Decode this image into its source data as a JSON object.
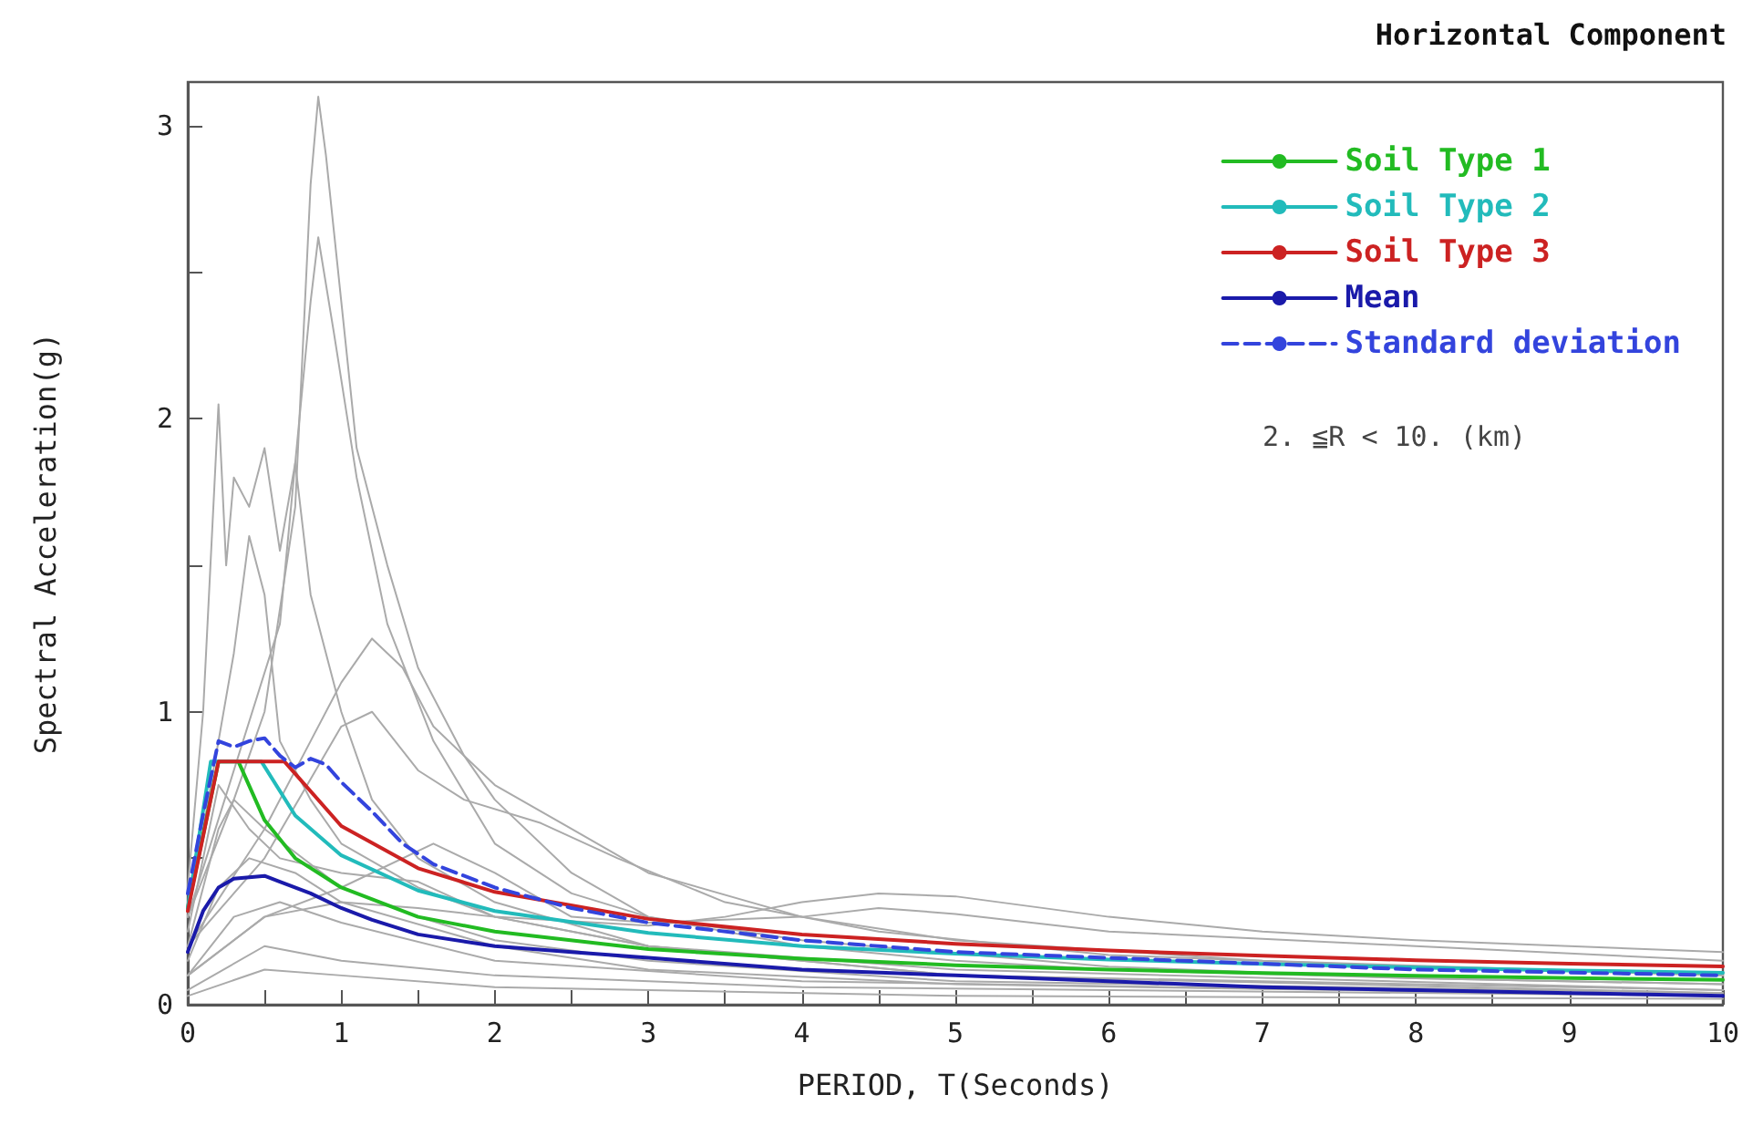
{
  "chart_data": {
    "type": "line",
    "title": "Horizontal Component",
    "xlabel": "PERIOD, T(Seconds)",
    "ylabel": "Spectral Acceleration(g)",
    "annotations": [
      "2. ≦R < 10. (km)"
    ],
    "xlim": [
      0,
      10
    ],
    "ylim": [
      0,
      3.15
    ],
    "xticks": [
      0,
      {
        "value": 0.5,
        "label": null
      },
      1,
      {
        "value": 1.5,
        "label": null
      },
      2,
      {
        "value": 2.5,
        "label": null
      },
      3,
      {
        "value": 3.5,
        "label": null
      },
      4,
      {
        "value": 4.5,
        "label": null
      },
      5,
      {
        "value": 5.5,
        "label": null
      },
      6,
      {
        "value": 6.5,
        "label": null
      },
      7,
      {
        "value": 7.5,
        "label": null
      },
      8,
      {
        "value": 8.5,
        "label": null
      },
      9,
      {
        "value": 9.5,
        "label": null
      },
      10
    ],
    "yticks": [
      0,
      {
        "value": 0.5,
        "label": null
      },
      1,
      {
        "value": 1.5,
        "label": null
      },
      2,
      {
        "value": 2.5,
        "label": null
      },
      3
    ],
    "grid": false,
    "legend": "top right",
    "marker": "none",
    "line_style": "solid",
    "series": [
      {
        "color": "#aaaaaa",
        "x": [
          0,
          0.3,
          0.5,
          0.7,
          0.8,
          0.85,
          0.9,
          1.0,
          1.1,
          1.3,
          1.5,
          1.8,
          2,
          2.5,
          3,
          4,
          5,
          6,
          8,
          10
        ],
        "values": [
          0.3,
          0.7,
          1.0,
          1.7,
          2.8,
          3.1,
          2.9,
          2.4,
          1.9,
          1.5,
          1.15,
          0.85,
          0.7,
          0.45,
          0.3,
          0.2,
          0.15,
          0.12,
          0.09,
          0.07
        ]
      },
      {
        "color": "#aaaaaa",
        "x": [
          0,
          0.3,
          0.6,
          0.8,
          0.85,
          0.95,
          1.1,
          1.3,
          1.6,
          2,
          2.5,
          3,
          4,
          6,
          8,
          10
        ],
        "values": [
          0.3,
          0.8,
          1.3,
          2.4,
          2.62,
          2.3,
          1.8,
          1.3,
          0.9,
          0.55,
          0.38,
          0.3,
          0.22,
          0.13,
          0.09,
          0.07
        ]
      },
      {
        "color": "#aaaaaa",
        "x": [
          0,
          0.1,
          0.2,
          0.25,
          0.3,
          0.4,
          0.5,
          0.6,
          0.7,
          0.8,
          1.0,
          1.2,
          1.5,
          2,
          3,
          5,
          10
        ],
        "values": [
          0.4,
          1.0,
          2.05,
          1.5,
          1.8,
          1.7,
          1.9,
          1.55,
          1.85,
          1.4,
          1.0,
          0.7,
          0.5,
          0.35,
          0.2,
          0.1,
          0.04
        ]
      },
      {
        "color": "#aaaaaa",
        "x": [
          0,
          0.2,
          0.3,
          0.4,
          0.5,
          0.6,
          0.8,
          1,
          1.5,
          2,
          3,
          5,
          10
        ],
        "values": [
          0.3,
          0.9,
          1.2,
          1.6,
          1.4,
          0.9,
          0.7,
          0.55,
          0.4,
          0.3,
          0.2,
          0.1,
          0.05
        ]
      },
      {
        "color": "#aaaaaa",
        "x": [
          0,
          0.5,
          0.8,
          1.0,
          1.2,
          1.4,
          1.6,
          2,
          2.5,
          3,
          4,
          5,
          7,
          10
        ],
        "values": [
          0.2,
          0.6,
          0.9,
          1.1,
          1.25,
          1.15,
          0.95,
          0.75,
          0.6,
          0.45,
          0.3,
          0.22,
          0.15,
          0.1
        ]
      },
      {
        "color": "#aaaaaa",
        "x": [
          0,
          0.5,
          1,
          1.2,
          1.5,
          1.8,
          2.3,
          2.8,
          3.5,
          4.5,
          6,
          8,
          10
        ],
        "values": [
          0.2,
          0.5,
          0.95,
          1.0,
          0.8,
          0.7,
          0.62,
          0.5,
          0.35,
          0.25,
          0.17,
          0.13,
          0.1
        ]
      },
      {
        "color": "#aaaaaa",
        "x": [
          0,
          0.5,
          1,
          1.5,
          2,
          3,
          3.5,
          4,
          4.5,
          5,
          6,
          7,
          8,
          9,
          10
        ],
        "values": [
          0.1,
          0.3,
          0.35,
          0.33,
          0.3,
          0.27,
          0.3,
          0.35,
          0.38,
          0.37,
          0.3,
          0.25,
          0.22,
          0.2,
          0.18
        ]
      },
      {
        "color": "#aaaaaa",
        "x": [
          0,
          0.5,
          1,
          1.6,
          2,
          2.5,
          3,
          4,
          4.5,
          5,
          6,
          8,
          10
        ],
        "values": [
          0.1,
          0.3,
          0.4,
          0.55,
          0.45,
          0.3,
          0.28,
          0.3,
          0.33,
          0.31,
          0.25,
          0.2,
          0.15
        ]
      },
      {
        "color": "#aaaaaa",
        "x": [
          0,
          0.2,
          0.3,
          0.5,
          1,
          1.5,
          2,
          3,
          5,
          10
        ],
        "values": [
          0.2,
          0.6,
          0.7,
          0.6,
          0.4,
          0.3,
          0.22,
          0.15,
          0.08,
          0.04
        ]
      },
      {
        "color": "#aaaaaa",
        "x": [
          0,
          0.2,
          0.4,
          0.7,
          1,
          2,
          3,
          5,
          10
        ],
        "values": [
          0.15,
          0.4,
          0.5,
          0.45,
          0.35,
          0.2,
          0.12,
          0.07,
          0.03
        ]
      },
      {
        "color": "#aaaaaa",
        "x": [
          0,
          0.3,
          0.6,
          1,
          2,
          4,
          10
        ],
        "values": [
          0.1,
          0.3,
          0.35,
          0.28,
          0.15,
          0.08,
          0.03
        ]
      },
      {
        "color": "#aaaaaa",
        "x": [
          0,
          0.5,
          1,
          2,
          5,
          10
        ],
        "values": [
          0.03,
          0.12,
          0.1,
          0.06,
          0.03,
          0.02
        ]
      },
      {
        "color": "#aaaaaa",
        "x": [
          0,
          0.5,
          1,
          2,
          4,
          10
        ],
        "values": [
          0.05,
          0.2,
          0.15,
          0.1,
          0.06,
          0.03
        ]
      },
      {
        "color": "#aaaaaa",
        "x": [
          0,
          0.2,
          0.4,
          0.6,
          1,
          1.5,
          2,
          3,
          5,
          10
        ],
        "values": [
          0.25,
          0.75,
          0.6,
          0.5,
          0.45,
          0.42,
          0.3,
          0.2,
          0.12,
          0.05
        ]
      },
      {
        "name": "Soil Type 1",
        "color": "#22bb22",
        "x": [
          0,
          0.2,
          0.33,
          0.5,
          0.7,
          1,
          1.5,
          2,
          3,
          4,
          5,
          6,
          7,
          8,
          9,
          10
        ],
        "values": [
          0.33,
          0.83,
          0.83,
          0.63,
          0.5,
          0.4,
          0.3,
          0.25,
          0.19,
          0.157,
          0.135,
          0.12,
          0.108,
          0.099,
          0.091,
          0.085
        ]
      },
      {
        "name": "Soil Type 2",
        "color": "#22bbbb",
        "x": [
          0,
          0.15,
          0.48,
          0.7,
          1,
          1.5,
          2,
          3,
          4,
          5,
          6,
          7,
          8,
          9,
          10
        ],
        "values": [
          0.33,
          0.83,
          0.83,
          0.646,
          0.51,
          0.39,
          0.32,
          0.245,
          0.2,
          0.174,
          0.154,
          0.139,
          0.127,
          0.117,
          0.109
        ]
      },
      {
        "name": "Soil Type 3",
        "color": "#cc2222",
        "x": [
          0,
          0.2,
          0.63,
          1,
          1.5,
          2,
          3,
          4,
          5,
          6,
          7,
          8,
          9,
          10
        ],
        "values": [
          0.32,
          0.83,
          0.83,
          0.61,
          0.466,
          0.385,
          0.293,
          0.24,
          0.208,
          0.185,
          0.167,
          0.152,
          0.14,
          0.131
        ]
      },
      {
        "name": "Mean",
        "color": "#1a1aaa",
        "x": [
          0,
          0.1,
          0.2,
          0.3,
          0.5,
          0.6,
          0.8,
          1,
          1.2,
          1.5,
          2,
          2.5,
          3,
          4,
          5,
          6,
          7,
          8,
          9,
          10
        ],
        "values": [
          0.18,
          0.32,
          0.4,
          0.43,
          0.44,
          0.42,
          0.38,
          0.33,
          0.29,
          0.24,
          0.2,
          0.18,
          0.16,
          0.12,
          0.1,
          0.08,
          0.06,
          0.05,
          0.04,
          0.03
        ]
      },
      {
        "name": "Standard deviation",
        "color": "#3344dd",
        "line_style": "dashed",
        "x": [
          0,
          0.1,
          0.2,
          0.3,
          0.4,
          0.5,
          0.6,
          0.7,
          0.8,
          0.9,
          1,
          1.2,
          1.4,
          1.6,
          2,
          2.5,
          3,
          4,
          5,
          6,
          7,
          8,
          9,
          10
        ],
        "values": [
          0.38,
          0.65,
          0.9,
          0.88,
          0.9,
          0.91,
          0.85,
          0.81,
          0.84,
          0.82,
          0.76,
          0.66,
          0.55,
          0.48,
          0.4,
          0.33,
          0.28,
          0.22,
          0.18,
          0.16,
          0.14,
          0.12,
          0.11,
          0.1
        ]
      }
    ]
  }
}
